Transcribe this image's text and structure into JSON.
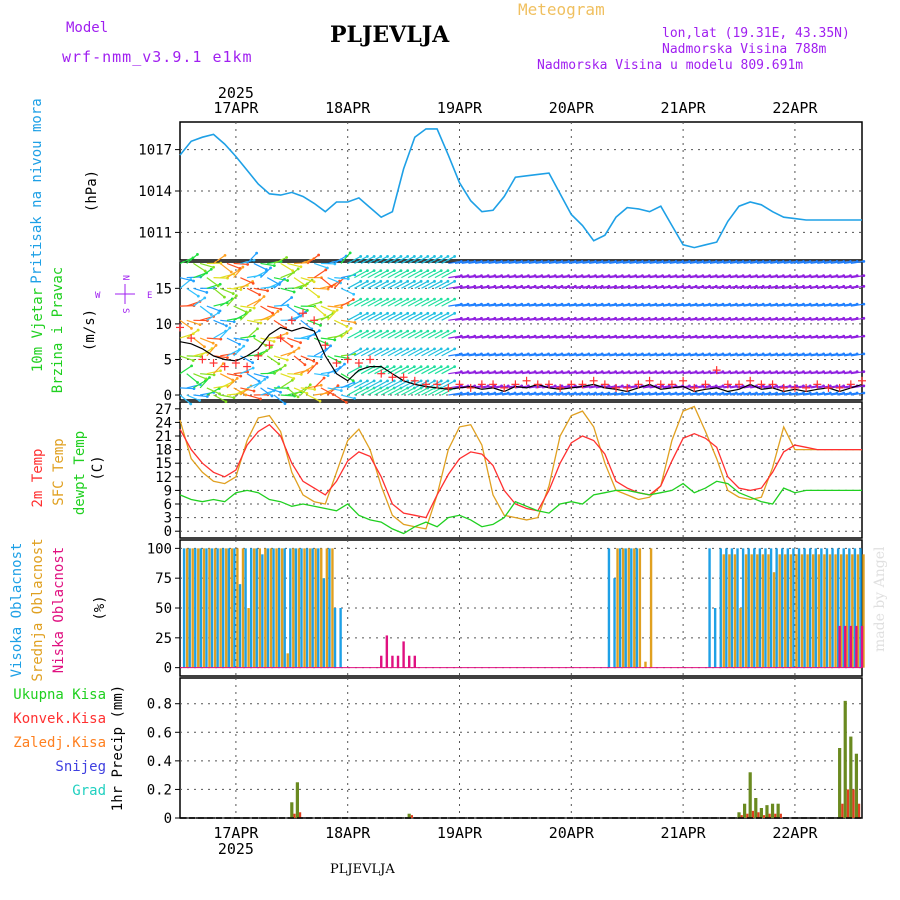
{
  "header": {
    "model_label": "Model",
    "model_name": "wrf-nmm_v3.9.1 e1km",
    "title": "PLJEVLJA",
    "meteogram": "Meteogram",
    "lonlat": "lon,lat (19.31E, 43.35N)",
    "elevation": "Nadmorska Visina 788m",
    "model_elevation": "Nadmorska Visina u modelu 809.691m"
  },
  "footer": {
    "station": "PLJEVLJA",
    "credit": "made by Angel"
  },
  "colors": {
    "purple": "#a020f0",
    "blue": "#1ea0e6",
    "red": "#ff3030",
    "orange": "#e0a020",
    "green": "#20d020",
    "magenta": "#e01080",
    "darkgreen": "#6a8a20"
  },
  "chart_data": [
    {
      "type": "line",
      "panel": "pressure",
      "ylabel": [
        "Pritisak na nivou mora",
        "(hPa)"
      ],
      "yticks": [
        1011,
        1014,
        1017
      ],
      "ylim": [
        1009,
        1019
      ],
      "year": "2025",
      "x_dates": [
        "17APR",
        "18APR",
        "19APR",
        "20APR",
        "21APR",
        "22APR"
      ],
      "x_range": [
        0,
        6.1
      ],
      "x": [
        0,
        0.1,
        0.2,
        0.3,
        0.4,
        0.5,
        0.6,
        0.7,
        0.8,
        0.9,
        1.0,
        1.1,
        1.2,
        1.3,
        1.4,
        1.5,
        1.6,
        1.7,
        1.8,
        1.9,
        2.0,
        2.1,
        2.2,
        2.3,
        2.4,
        2.5,
        2.6,
        2.7,
        2.8,
        2.9,
        3.0,
        3.1,
        3.2,
        3.3,
        3.4,
        3.5,
        3.6,
        3.7,
        3.8,
        3.9,
        4.0,
        4.1,
        4.2,
        4.3,
        4.4,
        4.5,
        4.6,
        4.7,
        4.8,
        4.9,
        5.0,
        5.1,
        5.2,
        5.3,
        5.4,
        5.5,
        5.6,
        5.7,
        5.8,
        5.9,
        6.0,
        6.1
      ],
      "series": [
        {
          "values": [
            1016.6,
            1017.6,
            1017.9,
            1018.1,
            1017.4,
            1016.5,
            1015.5,
            1014.5,
            1013.8,
            1013.7,
            1013.9,
            1013.6,
            1013.1,
            1012.5,
            1013.2,
            1013.2,
            1013.5,
            1012.8,
            1012.1,
            1012.5,
            1015.6,
            1017.9,
            1018.5,
            1018.5,
            1016.6,
            1014.6,
            1013.3,
            1012.5,
            1012.6,
            1013.6,
            1015.0,
            1015.1,
            1015.2,
            1015.3,
            1013.8,
            1012.3,
            1011.5,
            1010.4,
            1010.8,
            1012.1,
            1012.8,
            1012.7,
            1012.5,
            1012.9,
            1011.5,
            1010.1,
            1009.9,
            1010.1,
            1010.3,
            1011.8,
            1012.9,
            1013.2,
            1013.0,
            1012.5,
            1012.1,
            1012.0,
            1011.9,
            1011.9,
            1011.9,
            1011.9,
            1011.9,
            1011.9
          ]
        }
      ]
    },
    {
      "type": "line",
      "panel": "wind",
      "ylabel": [
        "10m Vjetar",
        "Brzina i Pravac",
        "(m/s)"
      ],
      "compass": {
        "n": "N",
        "s": "S",
        "e": "E",
        "w": "W"
      },
      "yticks": [
        0,
        5,
        10,
        15
      ],
      "ylim": [
        -0.7,
        18.7
      ],
      "x": [
        0,
        0.1,
        0.2,
        0.3,
        0.4,
        0.5,
        0.6,
        0.7,
        0.8,
        0.9,
        1.0,
        1.1,
        1.2,
        1.3,
        1.4,
        1.5,
        1.6,
        1.7,
        1.8,
        1.9,
        2.0,
        2.1,
        2.2,
        2.3,
        2.4,
        2.5,
        2.6,
        2.7,
        2.8,
        2.9,
        3.0,
        3.1,
        3.2,
        3.3,
        3.4,
        3.5,
        3.6,
        3.7,
        3.8,
        3.9,
        4.0,
        4.1,
        4.2,
        4.3,
        4.4,
        4.5,
        4.6,
        4.7,
        4.8,
        4.9,
        5.0,
        5.1,
        5.2,
        5.3,
        5.4,
        5.5,
        5.6,
        5.7,
        5.8,
        5.9,
        6.0,
        6.1
      ],
      "series": [
        {
          "name_hidden": "speed",
          "values": [
            7.5,
            7.2,
            6.5,
            5.5,
            5.0,
            4.8,
            5.5,
            6.5,
            8.5,
            9.5,
            9.0,
            9.5,
            9.0,
            5.5,
            3.0,
            2.0,
            3.5,
            4.0,
            4.0,
            3.0,
            2.0,
            1.5,
            1.2,
            1.0,
            0.8,
            1.0,
            1.2,
            0.8,
            1.0,
            0.5,
            1.2,
            1.0,
            1.5,
            1.0,
            0.8,
            1.0,
            1.2,
            1.5,
            1.0,
            0.8,
            0.5,
            1.0,
            1.5,
            0.8,
            1.0,
            1.2,
            0.5,
            0.8,
            1.0,
            0.5,
            0.8,
            1.5,
            0.8,
            1.0,
            0.5,
            0.8,
            0.5,
            0.8,
            1.0,
            0.5,
            1.0,
            1.5
          ]
        },
        {
          "name_hidden": "gust",
          "values": [
            9.5,
            8.0,
            5.0,
            4.5,
            4.0,
            4.5,
            4.0,
            5.5,
            7.0,
            8.0,
            10.5,
            11.5,
            10.5,
            7.0,
            4.5,
            5.0,
            4.5,
            5.0,
            3.0,
            2.5,
            2.5,
            2.0,
            1.5,
            1.5,
            1.0,
            1.5,
            1.0,
            1.5,
            1.5,
            1.0,
            1.5,
            2.0,
            1.5,
            1.5,
            1.0,
            1.5,
            1.5,
            2.0,
            1.5,
            1.0,
            1.0,
            1.5,
            2.0,
            1.5,
            1.5,
            2.0,
            1.0,
            1.5,
            3.5,
            1.5,
            1.5,
            2.0,
            1.5,
            1.5,
            1.0,
            1.0,
            1.0,
            1.5,
            1.0,
            1.0,
            1.5,
            2.0
          ]
        }
      ],
      "arrow_rows": [
        0,
        1,
        3,
        5.5,
        8,
        10.5,
        12.5,
        15,
        16.5,
        18.5
      ]
    },
    {
      "type": "line",
      "panel": "temperature",
      "ylabel": [
        "2m Temp",
        "SFC Temp",
        "dewpt Temp",
        "(C)"
      ],
      "yticks": [
        0,
        3,
        6,
        9,
        12,
        15,
        18,
        21,
        24,
        27
      ],
      "ylim": [
        -1.5,
        28.5
      ],
      "x": [
        0,
        0.1,
        0.2,
        0.3,
        0.4,
        0.5,
        0.6,
        0.7,
        0.8,
        0.9,
        1.0,
        1.1,
        1.2,
        1.3,
        1.4,
        1.5,
        1.6,
        1.7,
        1.8,
        1.9,
        2.0,
        2.1,
        2.2,
        2.3,
        2.4,
        2.5,
        2.6,
        2.7,
        2.8,
        2.9,
        3.0,
        3.1,
        3.2,
        3.3,
        3.4,
        3.5,
        3.6,
        3.7,
        3.8,
        3.9,
        4.0,
        4.1,
        4.2,
        4.3,
        4.4,
        4.5,
        4.6,
        4.7,
        4.8,
        4.9,
        5.0,
        5.1,
        5.2,
        5.3,
        5.4,
        5.5,
        5.6,
        5.7,
        5.8,
        5.9,
        6.0,
        6.1
      ],
      "series": [
        {
          "name_hidden": "2m",
          "values": [
            22.5,
            18.0,
            15.0,
            13.0,
            12.0,
            13.5,
            19.0,
            22.0,
            23.5,
            21.0,
            15.0,
            11.0,
            9.5,
            8.0,
            11.0,
            15.5,
            17.5,
            16.5,
            12.0,
            6.0,
            4.0,
            3.5,
            3.0,
            8.0,
            12.5,
            16.0,
            17.5,
            17.0,
            14.5,
            9.0,
            6.0,
            5.0,
            4.5,
            9.0,
            15.0,
            19.5,
            21.0,
            20.0,
            17.0,
            11.0,
            9.5,
            8.5,
            8.0,
            10.0,
            15.5,
            20.5,
            21.5,
            20.5,
            18.5,
            12.0,
            9.5,
            9.0,
            9.5,
            13.0,
            17.5,
            19.0,
            18.5,
            18.0,
            18.0,
            18.0,
            18.0,
            18.0
          ]
        },
        {
          "name_hidden": "sfc",
          "values": [
            24.5,
            16.0,
            13.0,
            11.0,
            10.5,
            12.0,
            20.0,
            25.0,
            25.5,
            22.0,
            13.0,
            8.0,
            6.5,
            6.0,
            13.0,
            20.0,
            22.5,
            18.0,
            10.0,
            3.5,
            1.5,
            1.0,
            0.5,
            8.0,
            18.0,
            23.0,
            23.5,
            19.0,
            8.0,
            3.5,
            3.0,
            2.5,
            3.0,
            10.0,
            21.0,
            25.5,
            26.5,
            23.0,
            15.0,
            9.0,
            8.0,
            7.0,
            7.5,
            10.0,
            20.0,
            26.5,
            27.5,
            22.0,
            16.0,
            9.0,
            7.5,
            7.0,
            7.5,
            14.0,
            23.0,
            18.0,
            18.0,
            18.0,
            18.0,
            18.0,
            18.0,
            18.0
          ]
        },
        {
          "name_hidden": "dewpt",
          "values": [
            8.0,
            7.0,
            6.5,
            7.0,
            6.5,
            8.5,
            9.0,
            8.5,
            7.0,
            6.5,
            5.5,
            6.0,
            5.5,
            5.0,
            4.5,
            6.0,
            3.5,
            2.5,
            2.0,
            0.5,
            -0.5,
            1.0,
            2.0,
            1.0,
            3.0,
            3.5,
            2.5,
            1.0,
            1.5,
            3.0,
            6.5,
            5.5,
            4.5,
            4.0,
            6.0,
            6.5,
            6.0,
            8.0,
            8.5,
            9.0,
            9.0,
            8.5,
            8.0,
            8.5,
            9.0,
            10.5,
            8.5,
            9.5,
            11.0,
            10.5,
            8.5,
            7.5,
            6.5,
            6.0,
            9.5,
            8.5,
            9.0,
            9.0,
            9.0,
            9.0,
            9.0,
            9.0
          ]
        }
      ]
    },
    {
      "type": "bar",
      "panel": "cloud",
      "ylabel": [
        "Visoka Oblacnost",
        "Srednja Oblacnost",
        "Niska Oblacnost",
        "(%)"
      ],
      "yticks": [
        0,
        25,
        50,
        75,
        100
      ],
      "ylim": [
        -7,
        107
      ],
      "x_step": 0.05,
      "spans": [
        {
          "series": "high",
          "from": 0.05,
          "to": 1.35,
          "value": 100,
          "dips": [
            [
              0.55,
              70
            ],
            [
              0.75,
              95
            ],
            [
              1.3,
              75
            ]
          ]
        },
        {
          "series": "mid",
          "from": 0.05,
          "to": 1.35,
          "value": 100,
          "dips": [
            [
              0.6,
              50
            ],
            [
              0.95,
              12
            ],
            [
              1.2,
              100
            ]
          ]
        },
        {
          "series": "high",
          "from": 1.4,
          "to": 1.45,
          "value": 50
        },
        {
          "series": "low",
          "from": 1.8,
          "to": 2.1,
          "value": 10,
          "dips": [
            [
              1.85,
              27
            ],
            [
              2.0,
              22
            ]
          ]
        },
        {
          "series": "high",
          "from": 3.85,
          "to": 4.1,
          "value": 100,
          "dips": [
            [
              3.9,
              75
            ]
          ]
        },
        {
          "series": "mid",
          "from": 3.9,
          "to": 4.2,
          "value": 100,
          "dips": [
            [
              4.15,
              5
            ]
          ]
        },
        {
          "series": "high",
          "from": 4.75,
          "to": 6.1,
          "value": 100,
          "dips": [
            [
              4.8,
              50
            ]
          ]
        },
        {
          "series": "mid",
          "from": 4.85,
          "to": 6.1,
          "value": 95,
          "dips": [
            [
              5.0,
              50
            ],
            [
              5.3,
              80
            ]
          ]
        },
        {
          "series": "low",
          "from": 5.9,
          "to": 6.1,
          "value": 35
        }
      ]
    },
    {
      "type": "bar",
      "panel": "precipitation",
      "ylabel": [
        "Ukupna Kisa",
        "Konvek.Kisa",
        "Zaledj.Kisa",
        "Snijeg",
        "Grad",
        "1hr Precip (mm)"
      ],
      "yticks": [
        0,
        0.2,
        0.4,
        0.6,
        0.8
      ],
      "ylim": [
        0,
        0.98
      ],
      "bars": [
        {
          "x": 1.0,
          "values": [
            0.11,
            0.03
          ]
        },
        {
          "x": 1.05,
          "values": [
            0.25,
            0.04
          ]
        },
        {
          "x": 2.05,
          "values": [
            0.03,
            0.02
          ]
        },
        {
          "x": 5.0,
          "values": [
            0.04,
            0.02
          ]
        },
        {
          "x": 5.05,
          "values": [
            0.1,
            0.03
          ]
        },
        {
          "x": 5.1,
          "values": [
            0.32,
            0.05
          ]
        },
        {
          "x": 5.15,
          "values": [
            0.14,
            0.04
          ]
        },
        {
          "x": 5.2,
          "values": [
            0.07,
            0.02
          ]
        },
        {
          "x": 5.25,
          "values": [
            0.09,
            0.03
          ]
        },
        {
          "x": 5.3,
          "values": [
            0.1,
            0.03
          ]
        },
        {
          "x": 5.35,
          "values": [
            0.1,
            0.03
          ]
        },
        {
          "x": 5.9,
          "values": [
            0.49,
            0.1
          ]
        },
        {
          "x": 5.95,
          "values": [
            0.82,
            0.2
          ]
        },
        {
          "x": 6.0,
          "values": [
            0.57,
            0.2
          ]
        },
        {
          "x": 6.05,
          "values": [
            0.45,
            0.1
          ]
        }
      ]
    }
  ]
}
